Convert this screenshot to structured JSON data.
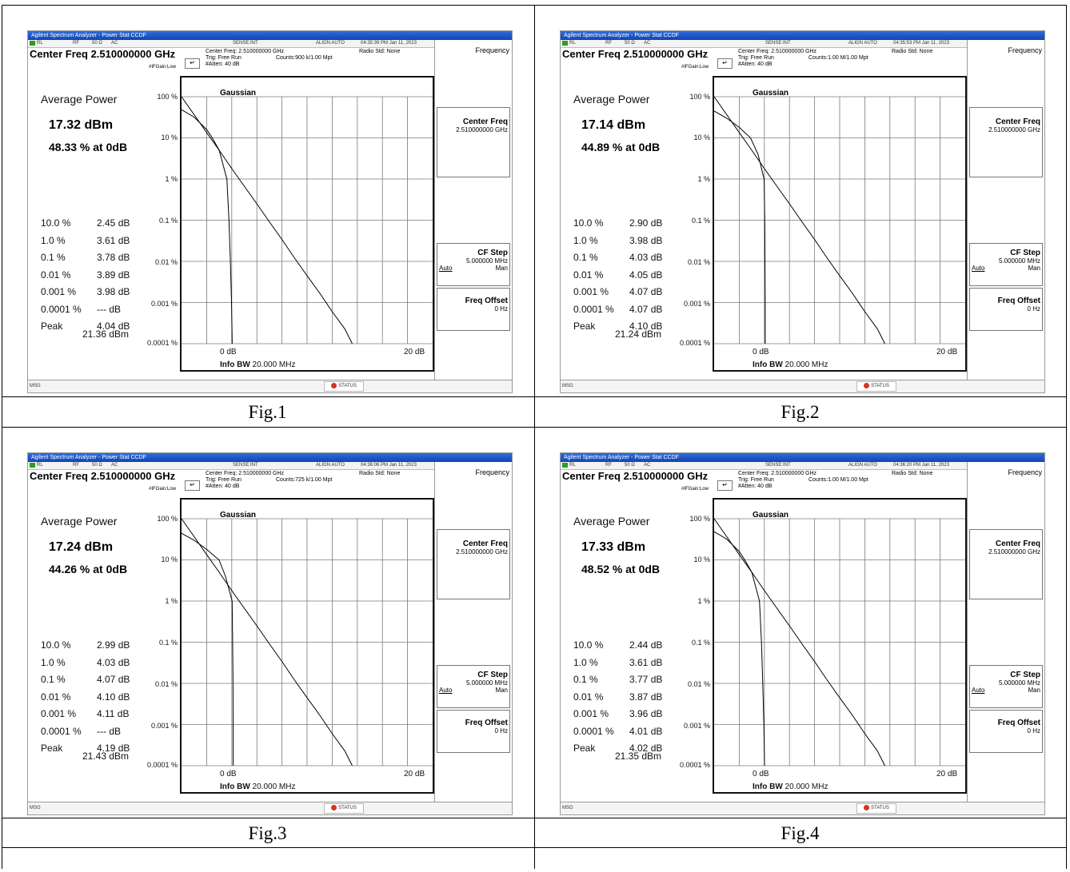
{
  "document": {
    "figures": [
      {
        "caption": "Fig.1",
        "titlebar": "Agilent Spectrum Analyzer - Power Stat CCDF",
        "status": {
          "rl": "RL",
          "rf": "RF",
          "ohm": "50 Ω",
          "ac": "AC",
          "sense": "SENSE:INT",
          "align": "ALIGN AUTO",
          "time": "04:35:39 PM Jan 11, 2023"
        },
        "center_freq_title": "Center Freq 2.510000000 GHz",
        "if_gain": "#IFGain:Low",
        "header": {
          "center_freq": "Center Freq: 2.510000000 GHz",
          "trig": "Trig: Free Run",
          "atten": "#Atten: 40 dB",
          "counts": "Counts:900 k/1.00 Mpt",
          "radio_std": "Radio Std: None"
        },
        "avg_label": "Average Power",
        "avg_power": "17.32 dBm",
        "avg_pct": "48.33 % at 0dB",
        "stats": [
          {
            "pct": "10.0 %",
            "db": "2.45 dB"
          },
          {
            "pct": "1.0 %",
            "db": "3.61 dB"
          },
          {
            "pct": "0.1 %",
            "db": "3.78 dB"
          },
          {
            "pct": "0.01 %",
            "db": "3.89 dB"
          },
          {
            "pct": "0.001 %",
            "db": "3.98 dB"
          },
          {
            "pct": "0.0001 %",
            "db": "--- dB"
          },
          {
            "pct": "Peak",
            "db": "4.04 dB"
          }
        ],
        "peak_dbm": "21.36 dBm",
        "plot": {
          "gaussian": "Gaussian",
          "yticks": [
            "100 %",
            "10 %",
            "1 %",
            "0.1 %",
            "0.01 %",
            "0.001 %",
            "0.0001 %"
          ],
          "x_start": "0 dB",
          "x_end": "20 dB",
          "info_bw_label": "Info BW",
          "info_bw_value": "20.000 MHz"
        },
        "softkeys": {
          "menu": "Frequency",
          "center_freq": "Center Freq",
          "center_freq_val": "2.510000000 GHz",
          "cf_step": "CF Step",
          "cf_step_val": "5.000000 MHz",
          "auto": "Auto",
          "man": "Man",
          "freq_offset": "Freq Offset",
          "freq_offset_val": "0 Hz"
        },
        "bottom": {
          "msg": "MSG",
          "status": "STATUS"
        }
      },
      {
        "caption": "Fig.2",
        "titlebar": "Agilent Spectrum Analyzer - Power Stat CCDF",
        "status": {
          "rl": "RL",
          "rf": "RF",
          "ohm": "50 Ω",
          "ac": "AC",
          "sense": "SENSE:INT",
          "align": "ALIGN AUTO",
          "time": "04:35:53 PM Jan 11, 2023"
        },
        "center_freq_title": "Center Freq 2.510000000 GHz",
        "if_gain": "#IFGain:Low",
        "header": {
          "center_freq": "Center Freq: 2.510000000 GHz",
          "trig": "Trig: Free Run",
          "atten": "#Atten: 40 dB",
          "counts": "Counts:1.00 M/1.00 Mpt",
          "radio_std": "Radio Std: None"
        },
        "avg_label": "Average Power",
        "avg_power": "17.14 dBm",
        "avg_pct": "44.89 % at 0dB",
        "stats": [
          {
            "pct": "10.0 %",
            "db": "2.90 dB"
          },
          {
            "pct": "1.0 %",
            "db": "3.98 dB"
          },
          {
            "pct": "0.1 %",
            "db": "4.03 dB"
          },
          {
            "pct": "0.01 %",
            "db": "4.05 dB"
          },
          {
            "pct": "0.001 %",
            "db": "4.07 dB"
          },
          {
            "pct": "0.0001 %",
            "db": "4.07 dB"
          },
          {
            "pct": "Peak",
            "db": "4.10 dB"
          }
        ],
        "peak_dbm": "21.24 dBm",
        "plot": {
          "gaussian": "Gaussian",
          "yticks": [
            "100 %",
            "10 %",
            "1 %",
            "0.1 %",
            "0.01 %",
            "0.001 %",
            "0.0001 %"
          ],
          "x_start": "0 dB",
          "x_end": "20 dB",
          "info_bw_label": "Info BW",
          "info_bw_value": "20.000 MHz"
        },
        "softkeys": {
          "menu": "Frequency",
          "center_freq": "Center Freq",
          "center_freq_val": "2.510000000 GHz",
          "cf_step": "CF Step",
          "cf_step_val": "5.000000 MHz",
          "auto": "Auto",
          "man": "Man",
          "freq_offset": "Freq Offset",
          "freq_offset_val": "0 Hz"
        },
        "bottom": {
          "msg": "MSG",
          "status": "STATUS"
        }
      },
      {
        "caption": "Fig.3",
        "titlebar": "Agilent Spectrum Analyzer - Power Stat CCDF",
        "status": {
          "rl": "RL",
          "rf": "RF",
          "ohm": "50 Ω",
          "ac": "AC",
          "sense": "SENSE:INT",
          "align": "ALIGN AUTO",
          "time": "04:36:06 PM Jan 11, 2023"
        },
        "center_freq_title": "Center Freq 2.510000000 GHz",
        "if_gain": "#IFGain:Low",
        "header": {
          "center_freq": "Center Freq: 2.510000000 GHz",
          "trig": "Trig: Free Run",
          "atten": "#Atten: 40 dB",
          "counts": "Counts:725 k/1.00 Mpt",
          "radio_std": "Radio Std: None"
        },
        "avg_label": "Average Power",
        "avg_power": "17.24 dBm",
        "avg_pct": "44.26 % at 0dB",
        "stats": [
          {
            "pct": "10.0 %",
            "db": "2.99 dB"
          },
          {
            "pct": "1.0 %",
            "db": "4.03 dB"
          },
          {
            "pct": "0.1 %",
            "db": "4.07 dB"
          },
          {
            "pct": "0.01 %",
            "db": "4.10 dB"
          },
          {
            "pct": "0.001 %",
            "db": "4.11 dB"
          },
          {
            "pct": "0.0001 %",
            "db": "--- dB"
          },
          {
            "pct": "Peak",
            "db": "4.19 dB"
          }
        ],
        "peak_dbm": "21.43 dBm",
        "plot": {
          "gaussian": "Gaussian",
          "yticks": [
            "100 %",
            "10 %",
            "1 %",
            "0.1 %",
            "0.01 %",
            "0.001 %",
            "0.0001 %"
          ],
          "x_start": "0 dB",
          "x_end": "20 dB",
          "info_bw_label": "Info BW",
          "info_bw_value": "20.000 MHz"
        },
        "softkeys": {
          "menu": "Frequency",
          "center_freq": "Center Freq",
          "center_freq_val": "2.510000000 GHz",
          "cf_step": "CF Step",
          "cf_step_val": "5.000000 MHz",
          "auto": "Auto",
          "man": "Man",
          "freq_offset": "Freq Offset",
          "freq_offset_val": "0 Hz"
        },
        "bottom": {
          "msg": "MSG",
          "status": "STATUS"
        }
      },
      {
        "caption": "Fig.4",
        "titlebar": "Agilent Spectrum Analyzer - Power Stat CCDF",
        "status": {
          "rl": "RL",
          "rf": "RF",
          "ohm": "50 Ω",
          "ac": "AC",
          "sense": "SENSE:INT",
          "align": "ALIGN AUTO",
          "time": "04:36:20 PM Jan 11, 2023"
        },
        "center_freq_title": "Center Freq 2.510000000 GHz",
        "if_gain": "#IFGain:Low",
        "header": {
          "center_freq": "Center Freq: 2.510000000 GHz",
          "trig": "Trig: Free Run",
          "atten": "#Atten: 40 dB",
          "counts": "Counts:1.00 M/1.00 Mpt",
          "radio_std": "Radio Std: None"
        },
        "avg_label": "Average Power",
        "avg_power": "17.33 dBm",
        "avg_pct": "48.52 % at 0dB",
        "stats": [
          {
            "pct": "10.0 %",
            "db": "2.44 dB"
          },
          {
            "pct": "1.0 %",
            "db": "3.61 dB"
          },
          {
            "pct": "0.1 %",
            "db": "3.77 dB"
          },
          {
            "pct": "0.01 %",
            "db": "3.87 dB"
          },
          {
            "pct": "0.001 %",
            "db": "3.96 dB"
          },
          {
            "pct": "0.0001 %",
            "db": "4.01 dB"
          },
          {
            "pct": "Peak",
            "db": "4.02 dB"
          }
        ],
        "peak_dbm": "21.35 dBm",
        "plot": {
          "gaussian": "Gaussian",
          "yticks": [
            "100 %",
            "10 %",
            "1 %",
            "0.1 %",
            "0.01 %",
            "0.001 %",
            "0.0001 %"
          ],
          "x_start": "0 dB",
          "x_end": "20 dB",
          "info_bw_label": "Info BW",
          "info_bw_value": "20.000 MHz"
        },
        "softkeys": {
          "menu": "Frequency",
          "center_freq": "Center Freq",
          "center_freq_val": "2.510000000 GHz",
          "cf_step": "CF Step",
          "cf_step_val": "5.000000 MHz",
          "auto": "Auto",
          "man": "Man",
          "freq_offset": "Freq Offset",
          "freq_offset_val": "0 Hz"
        },
        "bottom": {
          "msg": "MSG",
          "status": "STATUS"
        }
      }
    ]
  },
  "colors": {
    "titlebar": "#1c55c9",
    "trace": "#000000",
    "grid": "#7a7a7a",
    "status_icon": "#d9321f"
  },
  "chart_data": [
    {
      "type": "line",
      "ylabel": "",
      "xlabel": "",
      "x_range": [
        0,
        20
      ],
      "y_range_percent": [
        0.0001,
        100
      ],
      "y_scale": "log",
      "series": [
        {
          "x": [
            0,
            1,
            2,
            2.45,
            3,
            3.61,
            3.78,
            3.89,
            3.98,
            4.04
          ],
          "y": [
            48.33,
            32,
            16,
            10,
            5,
            1,
            0.1,
            0.01,
            0.001,
            0.0001
          ]
        },
        {
          "x": [
            0,
            1,
            2,
            3,
            4,
            5,
            6,
            7,
            8,
            9,
            10,
            11,
            12,
            13,
            13.6
          ],
          "y": [
            100,
            36.8,
            13.5,
            5.0,
            1.8,
            0.67,
            0.25,
            0.091,
            0.034,
            0.012,
            0.0045,
            0.0017,
            0.0006,
            0.00023,
            0.0001
          ]
        }
      ]
    },
    {
      "type": "line",
      "ylabel": "",
      "xlabel": "",
      "x_range": [
        0,
        20
      ],
      "y_range_percent": [
        0.0001,
        100
      ],
      "y_scale": "log",
      "series": [
        {
          "x": [
            0,
            1,
            2,
            2.9,
            3.5,
            3.98,
            4.03,
            4.05,
            4.07,
            4.07
          ],
          "y": [
            44.89,
            30,
            18,
            10,
            4,
            1,
            0.1,
            0.01,
            0.001,
            0.0001
          ]
        },
        {
          "x": [
            0,
            1,
            2,
            3,
            4,
            5,
            6,
            7,
            8,
            9,
            10,
            11,
            12,
            13,
            13.6
          ],
          "y": [
            100,
            36.8,
            13.5,
            5.0,
            1.8,
            0.67,
            0.25,
            0.091,
            0.034,
            0.012,
            0.0045,
            0.0017,
            0.0006,
            0.00023,
            0.0001
          ]
        }
      ]
    },
    {
      "type": "line",
      "ylabel": "",
      "xlabel": "",
      "x_range": [
        0,
        20
      ],
      "y_range_percent": [
        0.0001,
        100
      ],
      "y_scale": "log",
      "series": [
        {
          "x": [
            0,
            1,
            2,
            2.99,
            3.5,
            4.03,
            4.07,
            4.1,
            4.11
          ],
          "y": [
            44.26,
            30,
            18,
            10,
            4,
            1,
            0.1,
            0.01,
            0.001
          ]
        },
        {
          "x": [
            0,
            1,
            2,
            3,
            4,
            5,
            6,
            7,
            8,
            9,
            10,
            11,
            12,
            13,
            13.6
          ],
          "y": [
            100,
            36.8,
            13.5,
            5.0,
            1.8,
            0.67,
            0.25,
            0.091,
            0.034,
            0.012,
            0.0045,
            0.0017,
            0.0006,
            0.00023,
            0.0001
          ]
        }
      ]
    },
    {
      "type": "line",
      "ylabel": "",
      "xlabel": "",
      "x_range": [
        0,
        20
      ],
      "y_range_percent": [
        0.0001,
        100
      ],
      "y_scale": "log",
      "series": [
        {
          "x": [
            0,
            1,
            2,
            2.44,
            3,
            3.61,
            3.77,
            3.87,
            3.96,
            4.01
          ],
          "y": [
            48.52,
            32,
            16,
            10,
            5,
            1,
            0.1,
            0.01,
            0.001,
            0.0001
          ]
        },
        {
          "x": [
            0,
            1,
            2,
            3,
            4,
            5,
            6,
            7,
            8,
            9,
            10,
            11,
            12,
            13,
            13.6
          ],
          "y": [
            100,
            36.8,
            13.5,
            5.0,
            1.8,
            0.67,
            0.25,
            0.091,
            0.034,
            0.012,
            0.0045,
            0.0017,
            0.0006,
            0.00023,
            0.0001
          ]
        }
      ]
    }
  ]
}
